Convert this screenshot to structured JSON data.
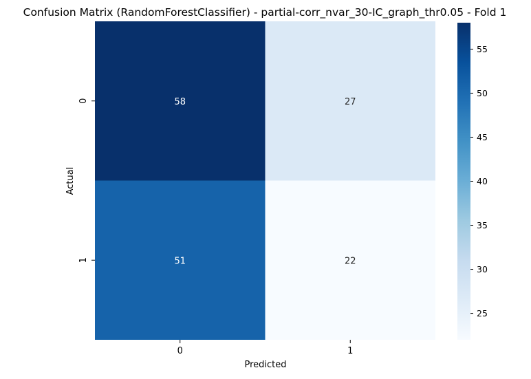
{
  "chart_data": {
    "type": "heatmap",
    "title": "Confusion Matrix (RandomForestClassifier) - partial-corr_nvar_30-IC_graph_thr0.05 - Fold 1",
    "xlabel": "Predicted",
    "ylabel": "Actual",
    "x_categories": [
      "0",
      "1"
    ],
    "y_categories": [
      "0",
      "1"
    ],
    "values": [
      [
        58,
        27
      ],
      [
        51,
        22
      ]
    ],
    "colormap": "Blues",
    "value_range": [
      22,
      58
    ],
    "colorbar": {
      "ticks": [
        25,
        30,
        35,
        40,
        45,
        50,
        55
      ],
      "tick_labels": [
        "25",
        "30",
        "35",
        "40",
        "45",
        "50",
        "55"
      ]
    },
    "cell_label_colors": {
      "on_dark": "#ffffff",
      "on_light": "#262626"
    }
  }
}
